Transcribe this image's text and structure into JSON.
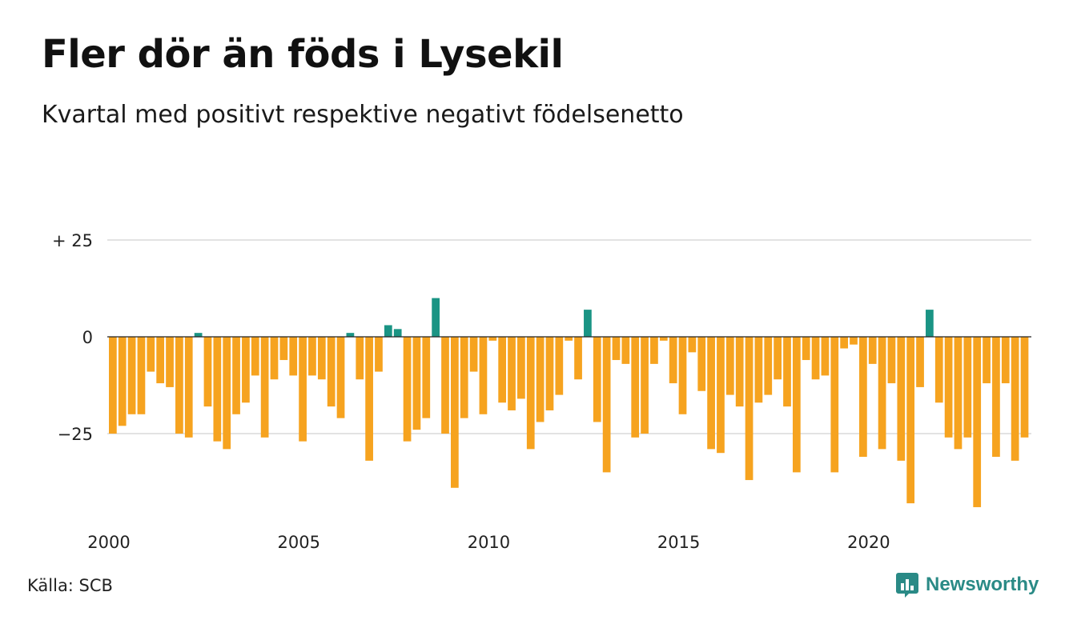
{
  "title": "Fler dör än föds i Lysekil",
  "subtitle": "Kvartal med positivt respektive negativt födelsenetto",
  "source": "Källa: SCB",
  "brand": "Newsworthy",
  "colors": {
    "positive": "#1a9484",
    "negative": "#f6a31f",
    "grid": "#e3e3e3",
    "zero": "#222222"
  },
  "chart_data": {
    "type": "bar",
    "xlabel": "",
    "ylabel": "",
    "ylim": [
      -45,
      25
    ],
    "y_ticks": [
      {
        "value": 25,
        "label": "+ 25"
      },
      {
        "value": 0,
        "label": "0"
      },
      {
        "value": -25,
        "label": "−25"
      }
    ],
    "x_ticks": [
      "2000",
      "2005",
      "2010",
      "2015",
      "2020"
    ],
    "grid": true,
    "start": "2000 Q1",
    "frequency": "quarterly",
    "values": [
      -25,
      -23,
      -20,
      -20,
      -9,
      -12,
      -13,
      -25,
      -26,
      1,
      -18,
      -27,
      -29,
      -20,
      -17,
      -10,
      -26,
      -11,
      -6,
      -10,
      -27,
      -10,
      -11,
      -18,
      -21,
      1,
      -11,
      -32,
      -9,
      3,
      2,
      -27,
      -24,
      -21,
      10,
      -25,
      -39,
      -21,
      -9,
      -20,
      -1,
      -17,
      -19,
      -16,
      -29,
      -22,
      -19,
      -15,
      -1,
      -11,
      7,
      -22,
      -35,
      -6,
      -7,
      -26,
      -25,
      -7,
      -1,
      -12,
      -20,
      -4,
      -14,
      -29,
      -30,
      -15,
      -18,
      -37,
      -17,
      -15,
      -11,
      -18,
      -35,
      -6,
      -11,
      -10,
      -35,
      -3,
      -2,
      -31,
      -7,
      -29,
      -12,
      -32,
      -43,
      -13,
      7,
      -17,
      -26,
      -29,
      -26,
      -44,
      -12,
      -31,
      -12,
      -32,
      -26
    ]
  }
}
